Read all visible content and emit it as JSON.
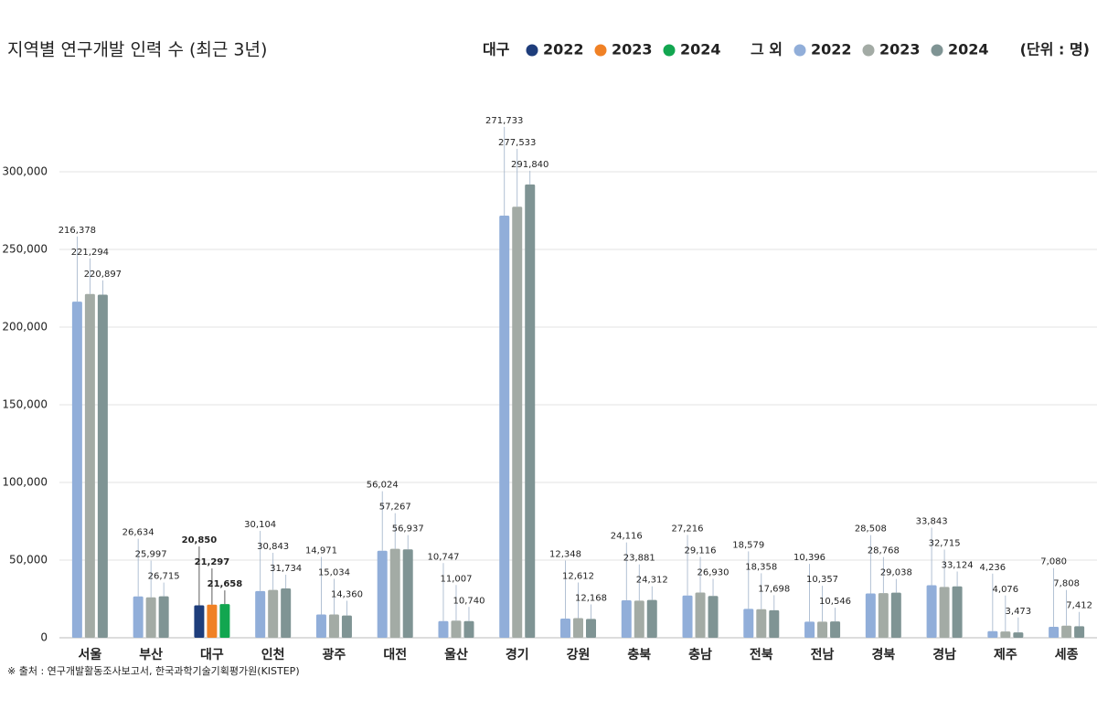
{
  "chart_data": {
    "type": "bar",
    "title": "지역별 연구개발 인력 수 (최근 3년)",
    "unit": "(단위 : 명)",
    "source": "※ 출처 : 연구개발활동조사보고서, 한국과학기술기획평가원(KISTEP)",
    "legend_groups": [
      "대구",
      "그 외"
    ],
    "highlight_category": "대구",
    "categories": [
      "서울",
      "부산",
      "대구",
      "인천",
      "광주",
      "대전",
      "울산",
      "경기",
      "강원",
      "충북",
      "충남",
      "전북",
      "전남",
      "경북",
      "경남",
      "제주",
      "세종"
    ],
    "series": [
      {
        "name": "2022",
        "color": "#91aed9",
        "highlight_color": "#1e3d7b",
        "values": [
          216378,
          26634,
          20850,
          30104,
          14971,
          56024,
          10747,
          271733,
          12348,
          24116,
          27216,
          18579,
          10396,
          28508,
          33843,
          4236,
          7080
        ],
        "value_labels": [
          "216,378",
          "26,634",
          "20,850",
          "30,104",
          "14,971",
          "56,024",
          "10,747",
          "271,733",
          "12,348",
          "24,116",
          "27,216",
          "18,579",
          "10,396",
          "28,508",
          "33,843",
          "4,236",
          "7,080"
        ]
      },
      {
        "name": "2023",
        "color": "#a3aba5",
        "highlight_color": "#f08125",
        "values": [
          221294,
          25997,
          21297,
          30843,
          15034,
          57267,
          11007,
          277533,
          12612,
          23881,
          29116,
          18358,
          10357,
          28768,
          32715,
          4076,
          7808
        ],
        "value_labels": [
          "221,294",
          "25,997",
          "21,297",
          "30,843",
          "15,034",
          "57,267",
          "11,007",
          "277,533",
          "12,612",
          "23,881",
          "29,116",
          "18,358",
          "10,357",
          "28,768",
          "32,715",
          "4,076",
          "7,808"
        ]
      },
      {
        "name": "2024",
        "color": "#7f9494",
        "highlight_color": "#12a650",
        "values": [
          220897,
          26715,
          21658,
          31734,
          14360,
          56937,
          10740,
          291840,
          12168,
          24312,
          26930,
          17698,
          10546,
          29038,
          33124,
          3473,
          7412
        ],
        "value_labels": [
          "220,897",
          "26,715",
          "21,658",
          "31,734",
          "14,360",
          "56,937",
          "10,740",
          "291,840",
          "12,168",
          "24,312",
          "26,930",
          "17,698",
          "10,546",
          "29,038",
          "33,124",
          "3,473",
          "7,412"
        ]
      }
    ],
    "ylim": [
      0,
      300000
    ],
    "yticks": [
      0,
      {
        "value": 50000,
        "label": "50,000"
      },
      {
        "value": 100000,
        "label": "100,000"
      },
      {
        "value": 150000,
        "label": "150,000"
      },
      {
        "value": 200000,
        "label": "200,000"
      },
      {
        "value": 250000,
        "label": "250,000"
      },
      {
        "value": 300000,
        "label": "300,000"
      }
    ],
    "grid": true
  }
}
